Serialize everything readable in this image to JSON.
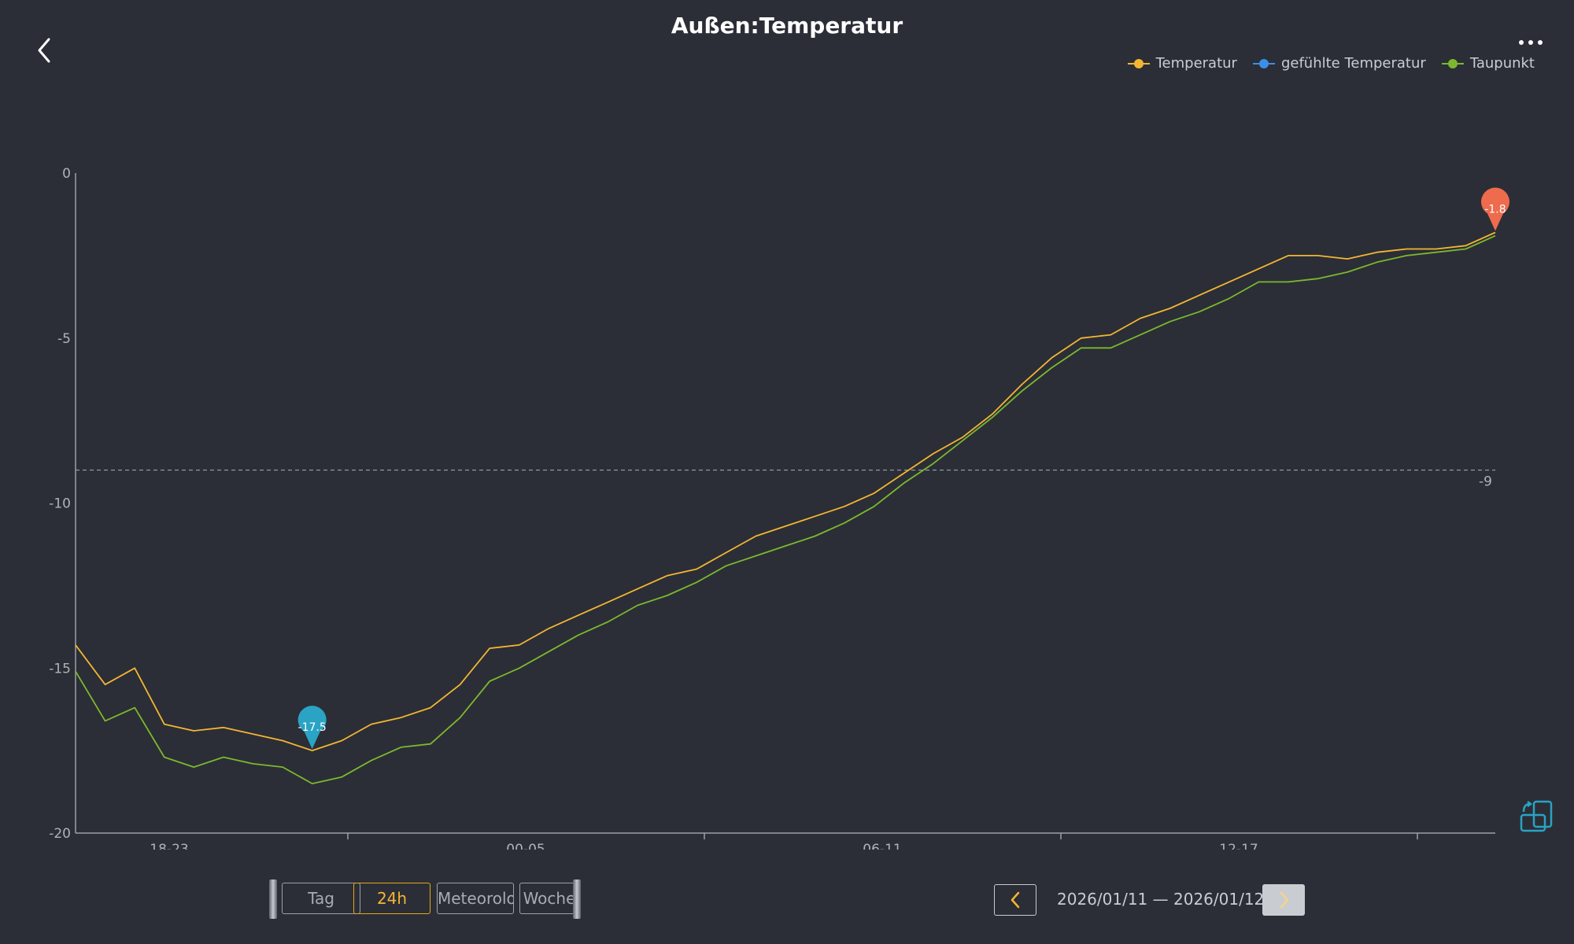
{
  "header": {
    "title": "Außen:Temperatur",
    "back_icon": "chevron-left-icon",
    "more_icon": "more-dots-icon"
  },
  "legend": [
    {
      "label": "Temperatur",
      "color": "#f4b632"
    },
    {
      "label": "gefühlte Temperatur",
      "color": "#3b8fe6"
    },
    {
      "label": "Taupunkt",
      "color": "#7cb82f"
    }
  ],
  "controls": {
    "segments": [
      {
        "label": "Tag",
        "active": false
      },
      {
        "label": "24h",
        "active": true
      },
      {
        "label": "Meteorologisch",
        "active": false
      },
      {
        "label": "Woche",
        "active": false
      }
    ],
    "date_range": "2026/01/11 — 2026/01/12",
    "prev_icon": "chevron-left-icon",
    "next_icon": "chevron-right-icon",
    "rotate_icon": "rotate-screen-icon"
  },
  "chart_data": {
    "type": "line",
    "x_ticks": [
      "18-23",
      "00-05",
      "06-11",
      "12-17"
    ],
    "ylim": [
      -20,
      0
    ],
    "y_ticks": [
      0,
      -5,
      -10,
      -15,
      -20
    ],
    "reference_line": {
      "value": -9,
      "label": "-9",
      "style": "dashed"
    },
    "markers": [
      {
        "label": "-17.5",
        "series": "Temperatur",
        "type": "min",
        "color": "#2ba3c4"
      },
      {
        "label": "-1.8",
        "series": "Temperatur",
        "type": "max",
        "color": "#ee6b4d"
      }
    ],
    "x": [
      0,
      0.5,
      1,
      1.5,
      2,
      2.5,
      3,
      3.5,
      4,
      4.5,
      5,
      5.5,
      6,
      6.5,
      7,
      7.5,
      8,
      8.5,
      9,
      9.5,
      10,
      10.5,
      11,
      11.5,
      12,
      12.5,
      13,
      13.5,
      14,
      14.5,
      15,
      15.5,
      16,
      16.5,
      17,
      17.5,
      18,
      18.5,
      19,
      19.5,
      20,
      20.5,
      21,
      21.5,
      22,
      22.5,
      23,
      23.5,
      24
    ],
    "series": [
      {
        "name": "Temperatur",
        "color": "#f4b632",
        "values": [
          -14.3,
          -15.5,
          -15.0,
          -16.7,
          -16.9,
          -16.8,
          -17.0,
          -17.2,
          -17.5,
          -17.2,
          -16.7,
          -16.5,
          -16.2,
          -15.5,
          -14.4,
          -14.3,
          -13.8,
          -13.4,
          -13.0,
          -12.6,
          -12.2,
          -12.0,
          -11.5,
          -11.0,
          -10.7,
          -10.4,
          -10.1,
          -9.7,
          -9.1,
          -8.5,
          -8.0,
          -7.3,
          -6.4,
          -5.6,
          -5.0,
          -4.9,
          -4.4,
          -4.1,
          -3.7,
          -3.3,
          -2.9,
          -2.5,
          -2.5,
          -2.6,
          -2.4,
          -2.3,
          -2.3,
          -2.2,
          -1.8
        ]
      },
      {
        "name": "Taupunkt",
        "color": "#7cb82f",
        "values": [
          -15.1,
          -16.6,
          -16.2,
          -17.7,
          -18.0,
          -17.7,
          -17.9,
          -18.0,
          -18.5,
          -18.3,
          -17.8,
          -17.4,
          -17.3,
          -16.5,
          -15.4,
          -15.0,
          -14.5,
          -14.0,
          -13.6,
          -13.1,
          -12.8,
          -12.4,
          -11.9,
          -11.6,
          -11.3,
          -11.0,
          -10.6,
          -10.1,
          -9.4,
          -8.8,
          -8.1,
          -7.4,
          -6.6,
          -5.9,
          -5.3,
          -5.3,
          -4.9,
          -4.5,
          -4.2,
          -3.8,
          -3.3,
          -3.3,
          -3.2,
          -3.0,
          -2.7,
          -2.5,
          -2.4,
          -2.3,
          -1.9
        ]
      }
    ]
  }
}
